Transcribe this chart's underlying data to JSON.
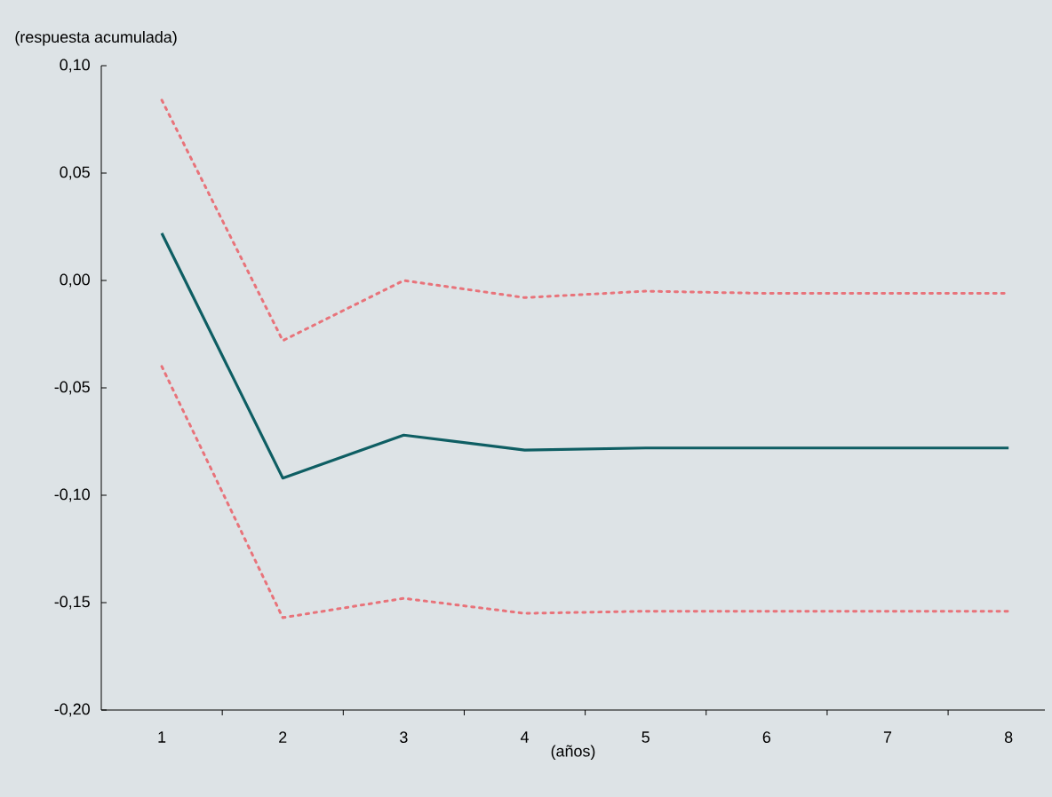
{
  "chart_data": {
    "type": "line",
    "xlabel": "(años)",
    "ylabel": "(respuesta acumulada)",
    "x": [
      1,
      2,
      3,
      4,
      5,
      6,
      7,
      8
    ],
    "series": [
      {
        "color": "#e8737a",
        "line_style": "dotted",
        "values": [
          0.084,
          -0.028,
          0.0,
          -0.008,
          -0.005,
          -0.006,
          -0.006,
          -0.006
        ]
      },
      {
        "color": "#0e5e63",
        "line_style": "solid",
        "values": [
          0.022,
          -0.092,
          -0.072,
          -0.079,
          -0.078,
          -0.078,
          -0.078,
          -0.078
        ]
      },
      {
        "color": "#e8737a",
        "line_style": "dotted",
        "values": [
          -0.04,
          -0.157,
          -0.148,
          -0.155,
          -0.154,
          -0.154,
          -0.154,
          -0.154
        ]
      }
    ],
    "xlim": [
      0.5,
      8.3
    ],
    "xticks": [
      1,
      {
        "value": 1.5,
        "label": null
      },
      2,
      {
        "value": 2.5,
        "label": null
      },
      3,
      {
        "value": 3.5,
        "label": null
      },
      4,
      {
        "value": 4.5,
        "label": null
      },
      5,
      {
        "value": 5.5,
        "label": null
      },
      6,
      {
        "value": 6.5,
        "label": null
      },
      7,
      {
        "value": 7.5,
        "label": null
      },
      8
    ],
    "ylim": [
      -0.2,
      0.1
    ],
    "yticks": [
      {
        "value": -0.2,
        "label": "-0,20"
      },
      {
        "value": -0.15,
        "label": "-0,15"
      },
      {
        "value": -0.1,
        "label": "-0,10"
      },
      {
        "value": -0.05,
        "label": "-0,05"
      },
      {
        "value": 0.0,
        "label": "0,00"
      },
      {
        "value": 0.05,
        "label": "0,05"
      },
      {
        "value": 0.1,
        "label": "0,10"
      }
    ],
    "marker": "none"
  }
}
